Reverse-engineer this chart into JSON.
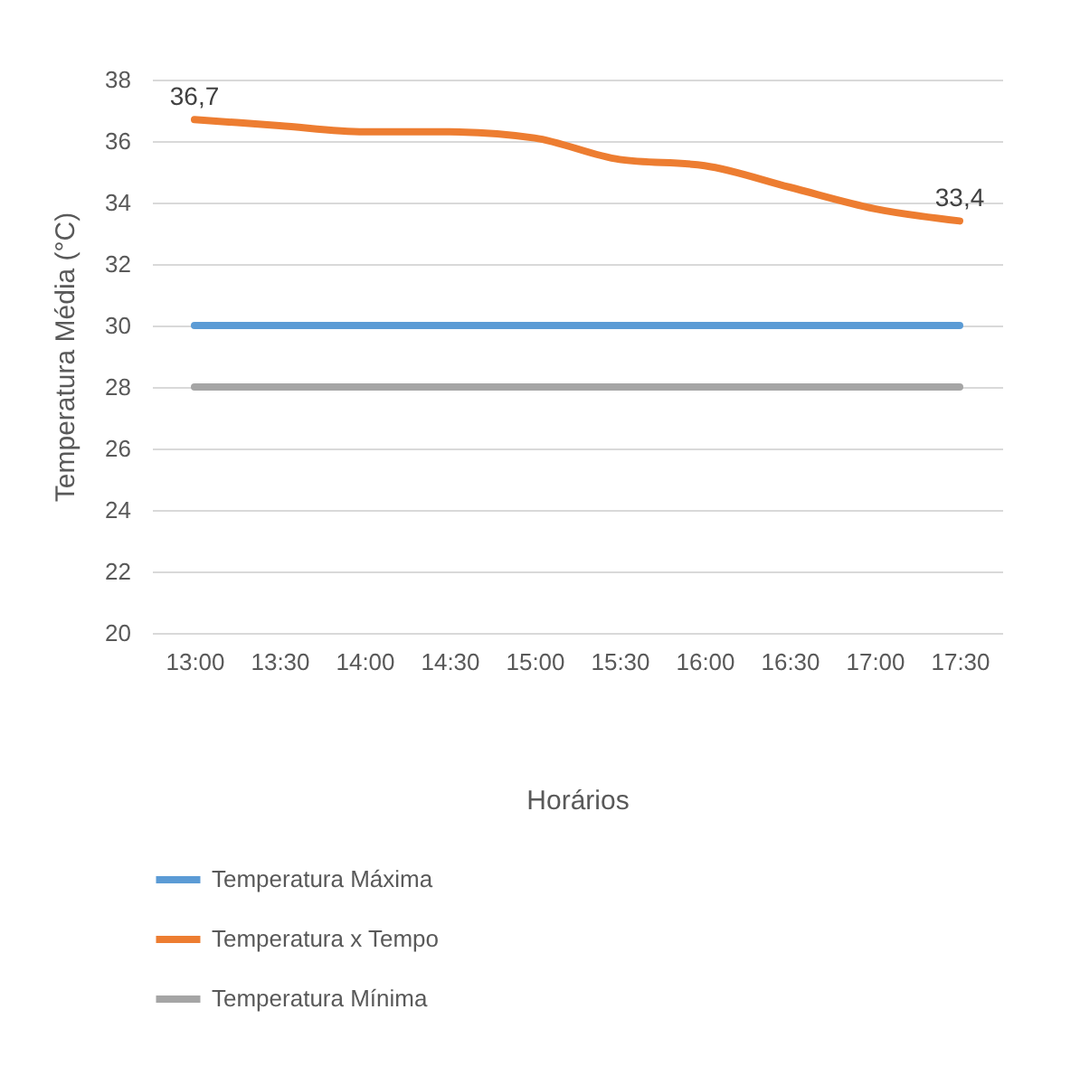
{
  "chart_data": {
    "type": "line",
    "xlabel": "Horários",
    "ylabel": "Temperatura Média (°C)",
    "categories": [
      "13:00",
      "13:30",
      "14:00",
      "14:30",
      "15:00",
      "15:30",
      "16:00",
      "16:30",
      "17:00",
      "17:30"
    ],
    "series": [
      {
        "name": "Temperatura Máxima",
        "color": "#5b9bd5",
        "values": [
          30,
          30,
          30,
          30,
          30,
          30,
          30,
          30,
          30,
          30
        ]
      },
      {
        "name": "Temperatura x Tempo",
        "color": "#ed7d31",
        "values": [
          36.7,
          36.5,
          36.3,
          36.3,
          36.1,
          35.4,
          35.2,
          34.5,
          33.8,
          33.4
        ],
        "value_labels": [
          "36,7",
          null,
          null,
          null,
          null,
          null,
          null,
          null,
          null,
          "33,4"
        ]
      },
      {
        "name": "Temperatura Mínima",
        "color": "#a5a5a5",
        "values": [
          28,
          28,
          28,
          28,
          28,
          28,
          28,
          28,
          28,
          28
        ]
      }
    ],
    "ylim": [
      20,
      38
    ],
    "yticks": [
      20,
      22,
      24,
      26,
      28,
      30,
      32,
      34,
      36,
      38
    ],
    "grid": "y",
    "legend": "bottom"
  }
}
